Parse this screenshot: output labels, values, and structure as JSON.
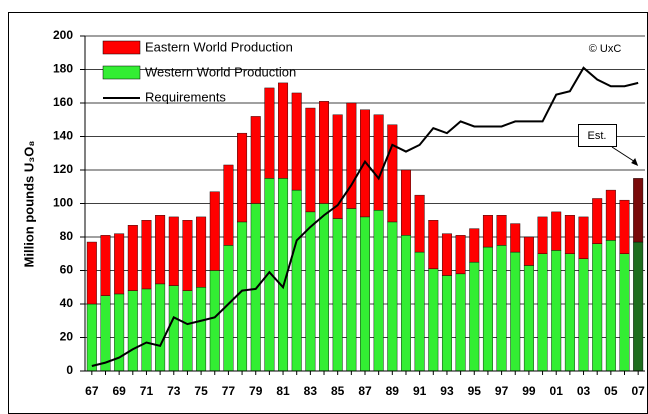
{
  "chart_data": {
    "type": "stacked_bar_line",
    "y_label": "Million pounds U₃O₈",
    "categories": [
      "67",
      null,
      "69",
      null,
      "71",
      null,
      "73",
      null,
      "75",
      null,
      "77",
      null,
      "79",
      null,
      "81",
      null,
      "83",
      null,
      "85",
      null,
      "87",
      null,
      "89",
      null,
      "91",
      null,
      "93",
      null,
      "95",
      null,
      "97",
      null,
      "99",
      null,
      "01",
      null,
      "03",
      null,
      "05",
      null,
      "07"
    ],
    "series": [
      {
        "name": "Western World Production",
        "color": "#33ee33",
        "est_color": "#1f6e1f",
        "values": [
          40,
          45,
          46,
          48,
          49,
          52,
          51,
          48,
          50,
          60,
          75,
          89,
          100,
          115,
          115,
          108,
          95,
          100,
          91,
          97,
          92,
          96,
          89,
          81,
          71,
          61,
          57,
          58,
          65,
          74,
          75,
          71,
          63,
          70,
          72,
          70,
          67,
          76,
          78,
          70,
          77
        ]
      },
      {
        "name": "Eastern World Production",
        "color": "#ff0000",
        "est_color": "#7a0a0a",
        "values": [
          37,
          36,
          36,
          39,
          41,
          41,
          41,
          42,
          42,
          47,
          48,
          53,
          52,
          54,
          57,
          58,
          62,
          61,
          62,
          63,
          64,
          57,
          58,
          39,
          34,
          29,
          25,
          23,
          20,
          19,
          18,
          17,
          17,
          22,
          23,
          23,
          25,
          27,
          30,
          32,
          38
        ]
      },
      {
        "name": "Requirements",
        "type": "line",
        "color": "#000000",
        "values": [
          3,
          5,
          8,
          13,
          17,
          15,
          32,
          28,
          30,
          32,
          40,
          48,
          49,
          59,
          50,
          78,
          86,
          93,
          99,
          111,
          125,
          115,
          135,
          131,
          135,
          145,
          142,
          149,
          146,
          146,
          146,
          149,
          149,
          149,
          165,
          167,
          181,
          174,
          170,
          170,
          172
        ]
      }
    ],
    "legend_order": [
      1,
      0,
      2
    ],
    "ylim": [
      0,
      200
    ],
    "yticks": [
      0,
      20,
      40,
      60,
      80,
      100,
      120,
      140,
      160,
      180,
      200
    ],
    "grid": true,
    "annotations": [
      {
        "text": "© UxC"
      },
      {
        "text": "Est.",
        "index": 40
      }
    ]
  }
}
